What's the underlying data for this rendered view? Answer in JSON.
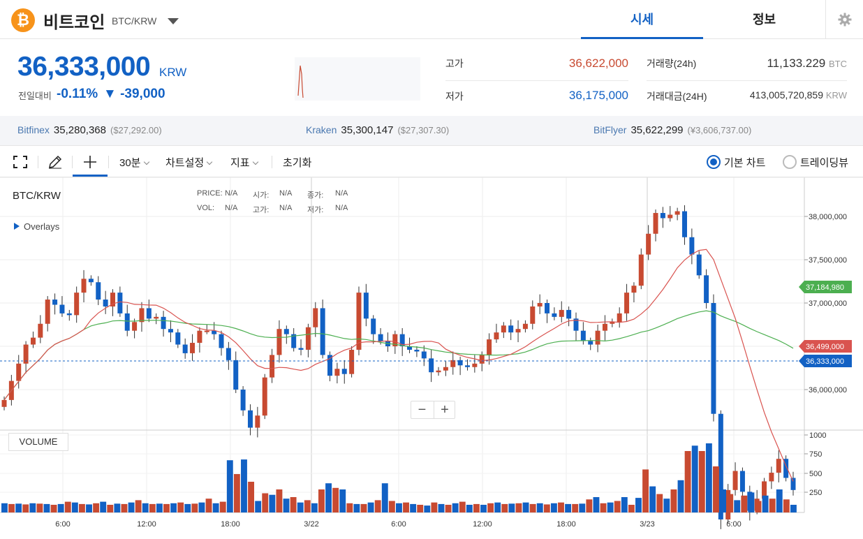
{
  "header": {
    "coin_symbol": "₿",
    "coin_name": "비트코인",
    "pair": "BTC/KRW",
    "tabs": [
      {
        "label": "시세",
        "active": true
      },
      {
        "label": "정보",
        "active": false
      }
    ]
  },
  "summary": {
    "price": "36,333,000",
    "unit": "KRW",
    "change_label": "전일대비",
    "change_pct": "-0.11%",
    "change_abs": "▼ -39,000",
    "high_label": "고가",
    "high_value": "36,622,000",
    "low_label": "저가",
    "low_value": "36,175,000",
    "volume_label": "거래량(24h)",
    "volume_value": "11,133.229",
    "volume_unit": "BTC",
    "amount_label": "거래대금(24H)",
    "amount_value": "413,005,720,859",
    "amount_unit": "KRW"
  },
  "exchanges": [
    {
      "name": "Bitfinex",
      "price": "35,280,368",
      "usd": "($27,292.00)"
    },
    {
      "name": "Kraken",
      "price": "35,300,147",
      "usd": "($27,307.30)"
    },
    {
      "name": "BitFlyer",
      "price": "35,622,299",
      "usd": "(¥3,606,737.00)"
    }
  ],
  "toolbar": {
    "interval": "30분",
    "chart_settings": "차트설정",
    "indicators": "지표",
    "reset": "초기화",
    "basic_chart": "기본 차트",
    "tradingview": "트레이딩뷰"
  },
  "chart": {
    "title": "BTC/KRW",
    "overlays": "Overlays",
    "info": {
      "price_label": "PRICE:",
      "price": "N/A",
      "open_label": "시가:",
      "open": "N/A",
      "close_label": "종가:",
      "close": "N/A",
      "vol_label": "VOL:",
      "vol": "N/A",
      "high_label": "고가:",
      "high": "N/A",
      "low_label": "저가:",
      "low": "N/A"
    },
    "volume_label": "VOLUME",
    "price_ticks": [
      "38,000,000",
      "37,500,000",
      "37,000,000",
      "36,000,000"
    ],
    "volume_ticks": [
      "1000",
      "750",
      "500",
      "250"
    ],
    "time_ticks": [
      "6:00",
      "12:00",
      "18:00",
      "3/22",
      "6:00",
      "12:00",
      "18:00",
      "3/23",
      "6:00"
    ],
    "tags": {
      "ma_green": "37,184,980",
      "ma_red": "36,499,000",
      "last": "36,333,000"
    },
    "colors": {
      "up": "#c84a31",
      "down": "#1261c4",
      "ma_red": "#d9534f",
      "ma_green": "#4caf50"
    }
  }
}
